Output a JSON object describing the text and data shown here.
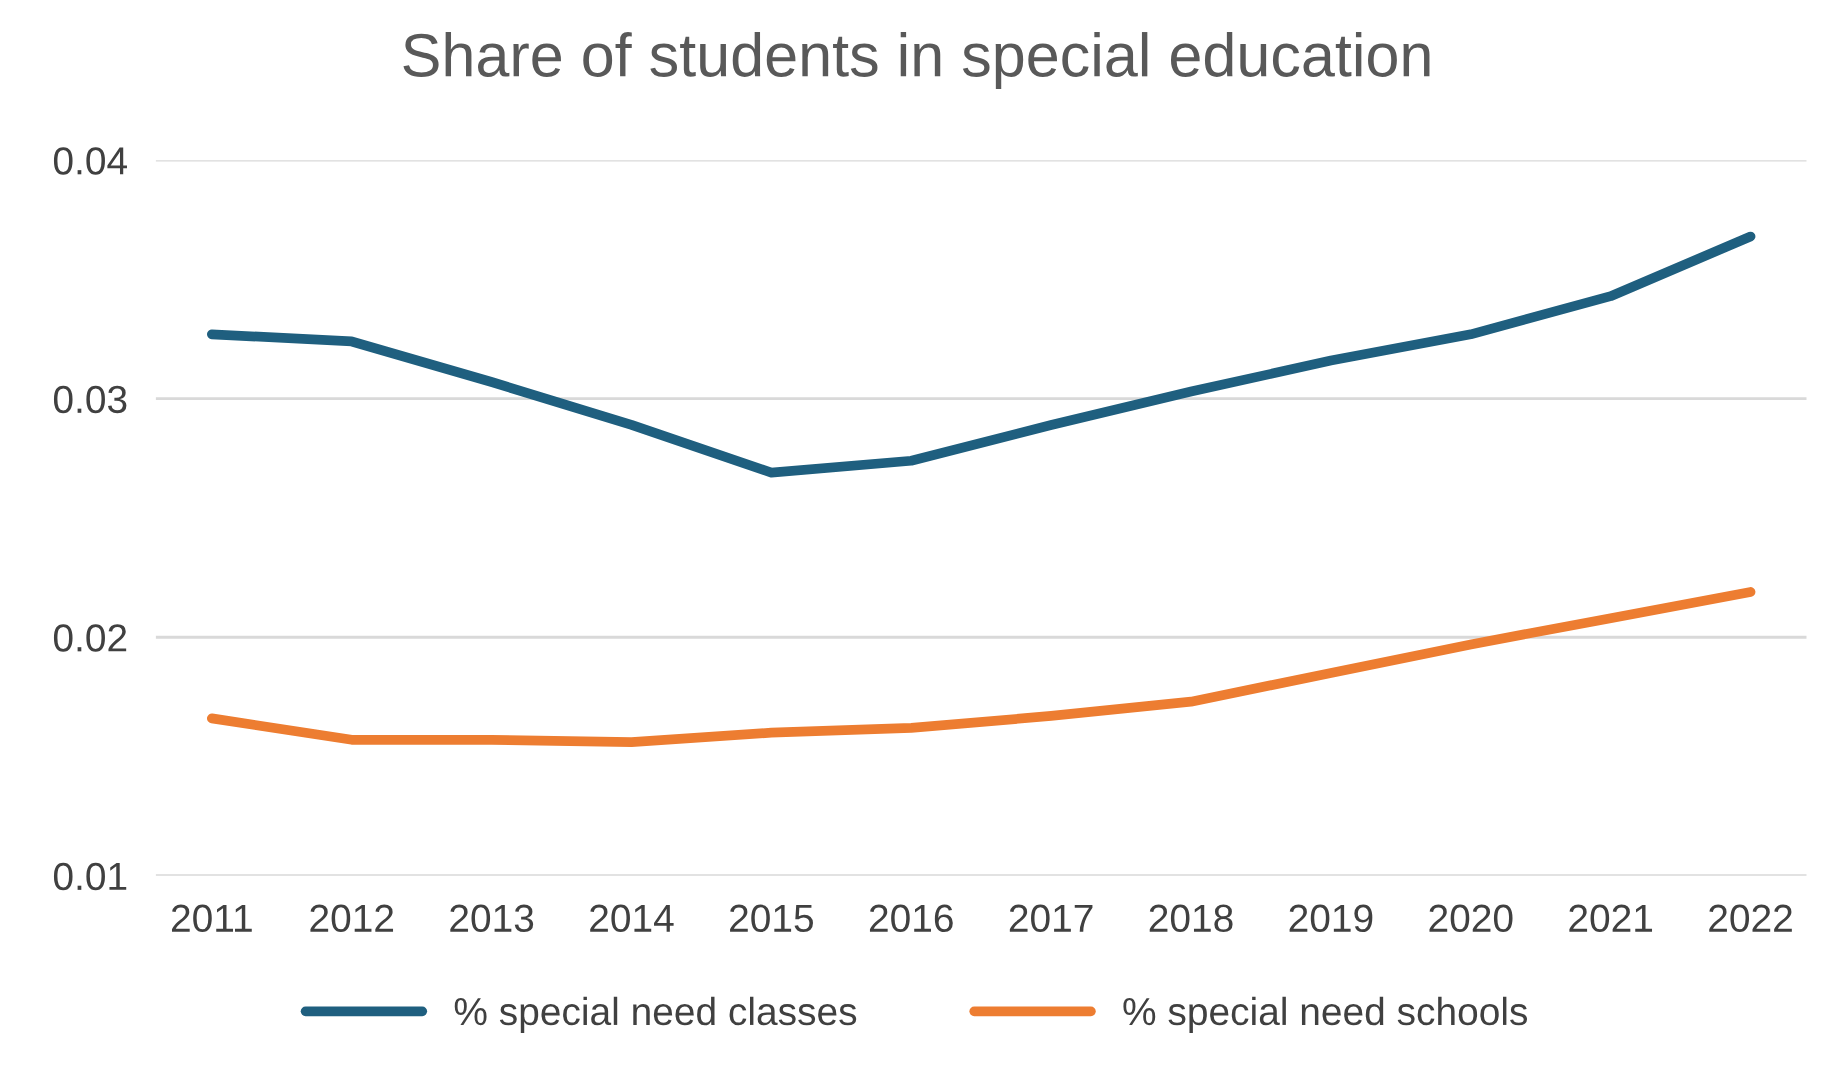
{
  "chart_data": {
    "type": "line",
    "title": "Share of students in special education",
    "categories": [
      "2011",
      "2012",
      "2013",
      "2014",
      "2015",
      "2016",
      "2017",
      "2018",
      "2019",
      "2020",
      "2021",
      "2022"
    ],
    "series": [
      {
        "name": "% special need classes",
        "color": "#1f5f7f",
        "values": [
          0.0327,
          0.0324,
          0.0307,
          0.0289,
          0.0269,
          0.0274,
          0.0289,
          0.0303,
          0.0316,
          0.0327,
          0.0343,
          0.0368
        ]
      },
      {
        "name": "% special need schools",
        "color": "#ed7d31",
        "values": [
          0.0166,
          0.0157,
          0.0157,
          0.0156,
          0.016,
          0.0162,
          0.0167,
          0.0173,
          0.0185,
          0.0197,
          0.0208,
          0.0219
        ]
      }
    ],
    "ylim": [
      0.01,
      0.04
    ],
    "yticks": [
      0.01,
      0.02,
      0.03,
      0.04
    ],
    "grid": "y",
    "legend": "bottom"
  }
}
